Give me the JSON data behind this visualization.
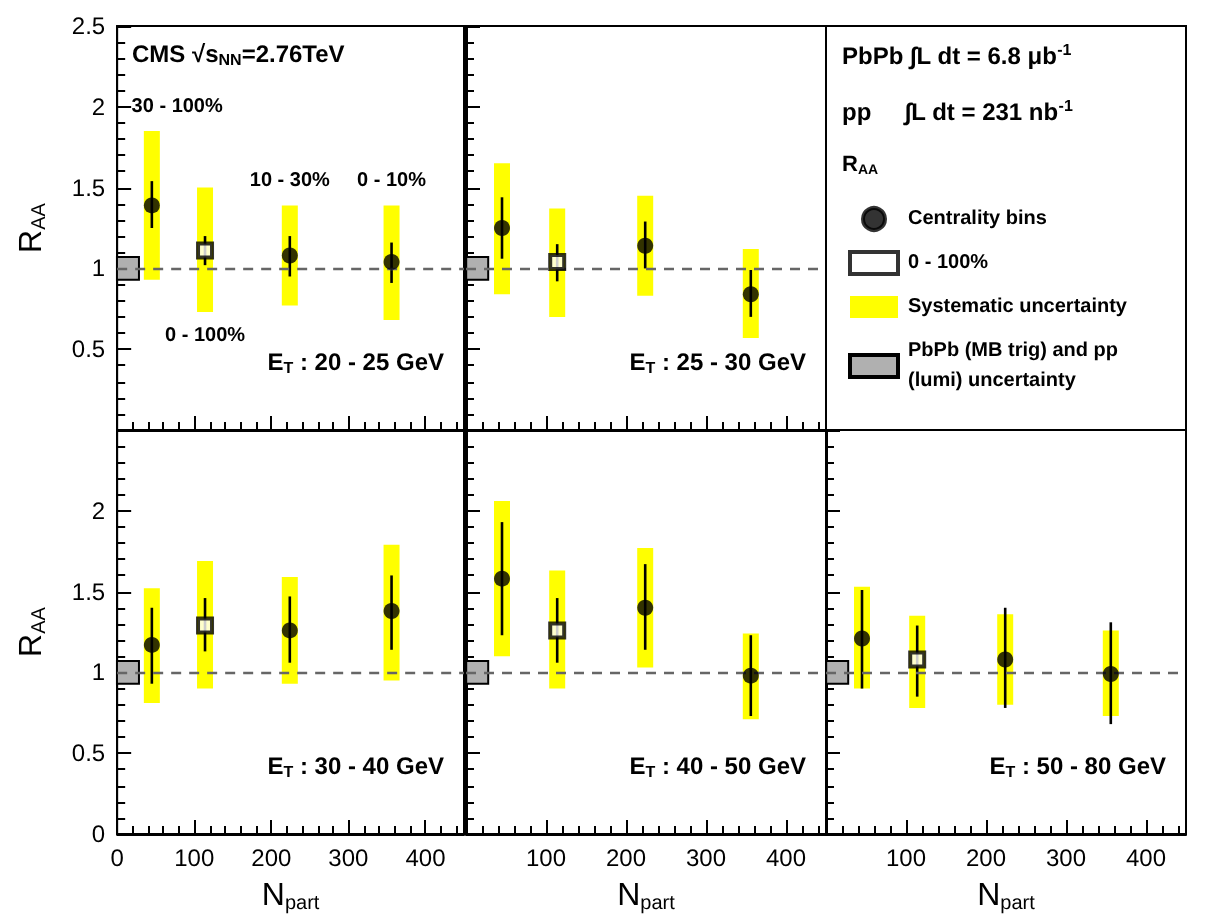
{
  "chart_data": [
    {
      "type": "scatter",
      "ylabel": "R$_{AA}$",
      "xlim": [
        0,
        450
      ],
      "ylim": [
        0,
        2.5
      ],
      "xticks": [
        0,
        100,
        200,
        300,
        400
      ],
      "yticks": [
        {
          "value": 0,
          "label": null
        },
        0.5,
        1,
        1.5,
        2,
        2.5
      ],
      "tick_labels": "y",
      "annotations": [
        "CMS √s$_{NN}$=2.76TeV",
        "E$_{T}$ : 20 - 25 GeV",
        "30 - 100%",
        "0 - 100%",
        "10 - 30%",
        "0 - 10%"
      ],
      "ref_lines": [
        {
          "axis": "y",
          "value": 1,
          "line_style": "dashed",
          "color": "#666666"
        }
      ],
      "series": [
        {
          "type": "bar",
          "color": "#ffff00",
          "x": [
            45,
            114,
            224,
            356
          ],
          "base": [
            0.93,
            0.73,
            0.77,
            0.68
          ],
          "values": [
            0.92,
            0.77,
            0.62,
            0.71
          ]
        },
        {
          "type": "bar",
          "color": "#b0b0b0",
          "x": [
            14
          ],
          "base": [
            0.93
          ],
          "values": [
            0.14
          ]
        },
        {
          "type": "scatter",
          "color": "#000000",
          "marker": "circle",
          "x": [
            45,
            224,
            356
          ],
          "values": [
            1.39,
            1.08,
            1.04
          ],
          "errors": [
            [
              1.25,
              1.54
            ],
            [
              0.95,
              1.2
            ],
            [
              0.91,
              1.16
            ]
          ]
        },
        {
          "type": "scatter",
          "color": "#000000",
          "marker": "square",
          "x": [
            114
          ],
          "values": [
            1.11
          ],
          "errors": [
            [
              1.02,
              1.2
            ]
          ]
        }
      ]
    },
    {
      "type": "scatter",
      "xlim": [
        0,
        450
      ],
      "ylim": [
        0,
        2.5
      ],
      "xticks": [
        0,
        100,
        200,
        300,
        400
      ],
      "yticks": [
        0,
        0.5,
        1,
        1.5,
        2,
        2.5
      ],
      "tick_labels": false,
      "annotations": [
        "E$_{T}$ : 25 - 30 GeV"
      ],
      "ref_lines": [
        {
          "axis": "y",
          "value": 1,
          "line_style": "dashed",
          "color": "#666666"
        }
      ],
      "series": [
        {
          "type": "bar",
          "color": "#ffff00",
          "x": [
            45,
            114,
            224,
            356
          ],
          "base": [
            0.84,
            0.7,
            0.83,
            0.57
          ],
          "values": [
            0.81,
            0.67,
            0.62,
            0.55
          ]
        },
        {
          "type": "bar",
          "color": "#b0b0b0",
          "x": [
            14
          ],
          "base": [
            0.93
          ],
          "values": [
            0.14
          ]
        },
        {
          "type": "scatter",
          "color": "#000000",
          "marker": "circle",
          "x": [
            45,
            224,
            356
          ],
          "values": [
            1.25,
            1.14,
            0.84
          ],
          "errors": [
            [
              1.06,
              1.44
            ],
            [
              1.0,
              1.29
            ],
            [
              0.7,
              0.99
            ]
          ]
        },
        {
          "type": "scatter",
          "color": "#000000",
          "marker": "square",
          "x": [
            114
          ],
          "values": [
            1.04
          ],
          "errors": [
            [
              0.92,
              1.15
            ]
          ]
        }
      ]
    },
    {
      "type": "other",
      "annotations": [
        "PbPb ∫L dt = 6.8 μb$^{-1}$",
        "pp     ∫L dt = 231 nb$^{-1}$"
      ],
      "legend_title": "R$_{AA}$",
      "legend": "right",
      "series": [
        {
          "type": "scatter",
          "name": "Centrality bins",
          "color": "#000000",
          "marker": "circle"
        },
        {
          "type": "scatter",
          "name": "0 - 100%",
          "color": "#000000",
          "marker": "square"
        },
        {
          "type": "bar",
          "name": "Systematic uncertainty",
          "color": "#ffff00"
        },
        {
          "type": "bar",
          "name": "PbPb (MB trig) and pp (lumi) uncertainty",
          "color": "#b0b0b0"
        }
      ]
    },
    {
      "type": "scatter",
      "ylabel": "R$_{AA}$",
      "xlabel": "N$_{part}$",
      "xlim": [
        0,
        450
      ],
      "ylim": [
        0,
        2.5
      ],
      "xticks": [
        0,
        100,
        200,
        300,
        400
      ],
      "yticks": [
        0,
        0.5,
        1,
        1.5,
        2,
        {
          "value": 2.5,
          "label": null
        }
      ],
      "annotations": [
        "E$_{T}$ : 30 - 40 GeV"
      ],
      "ref_lines": [
        {
          "axis": "y",
          "value": 1,
          "line_style": "dashed",
          "color": "#666666"
        }
      ],
      "series": [
        {
          "type": "bar",
          "color": "#ffff00",
          "x": [
            45,
            114,
            224,
            356
          ],
          "base": [
            0.81,
            0.9,
            0.93,
            0.95
          ],
          "values": [
            0.71,
            0.79,
            0.66,
            0.84
          ]
        },
        {
          "type": "bar",
          "color": "#b0b0b0",
          "x": [
            14
          ],
          "base": [
            0.93
          ],
          "values": [
            0.14
          ]
        },
        {
          "type": "scatter",
          "color": "#000000",
          "marker": "circle",
          "x": [
            45,
            224,
            356
          ],
          "values": [
            1.17,
            1.26,
            1.38
          ],
          "errors": [
            [
              0.93,
              1.4
            ],
            [
              1.06,
              1.47
            ],
            [
              1.14,
              1.6
            ]
          ]
        },
        {
          "type": "scatter",
          "color": "#000000",
          "marker": "square",
          "x": [
            114
          ],
          "values": [
            1.29
          ],
          "errors": [
            [
              1.13,
              1.46
            ]
          ]
        }
      ]
    },
    {
      "type": "scatter",
      "xlabel": "N$_{part}$",
      "xlim": [
        0,
        450
      ],
      "ylim": [
        0,
        2.5
      ],
      "xticks": [
        100,
        200,
        300,
        400
      ],
      "yticks": [
        0,
        0.5,
        1,
        1.5,
        2,
        2.5
      ],
      "tick_labels": "x",
      "annotations": [
        "E$_{T}$ : 40 - 50 GeV"
      ],
      "ref_lines": [
        {
          "axis": "y",
          "value": 1,
          "line_style": "dashed",
          "color": "#666666"
        }
      ],
      "series": [
        {
          "type": "bar",
          "color": "#ffff00",
          "x": [
            45,
            114,
            224,
            356
          ],
          "base": [
            1.1,
            0.9,
            1.03,
            0.71
          ],
          "values": [
            0.96,
            0.73,
            0.74,
            0.53
          ]
        },
        {
          "type": "bar",
          "color": "#b0b0b0",
          "x": [
            14
          ],
          "base": [
            0.93
          ],
          "values": [
            0.14
          ]
        },
        {
          "type": "scatter",
          "color": "#000000",
          "marker": "circle",
          "x": [
            45,
            224,
            356
          ],
          "values": [
            1.58,
            1.4,
            0.98
          ],
          "errors": [
            [
              1.23,
              1.93
            ],
            [
              1.14,
              1.67
            ],
            [
              0.73,
              1.23
            ]
          ]
        },
        {
          "type": "scatter",
          "color": "#000000",
          "marker": "square",
          "x": [
            114
          ],
          "values": [
            1.26
          ],
          "errors": [
            [
              1.06,
              1.46
            ]
          ]
        }
      ]
    },
    {
      "type": "scatter",
      "xlabel": "N$_{part}$",
      "xlim": [
        0,
        450
      ],
      "ylim": [
        0,
        2.5
      ],
      "xticks": [
        100,
        200,
        300,
        400
      ],
      "yticks": [
        0,
        0.5,
        1,
        1.5,
        2,
        2.5
      ],
      "tick_labels": "x",
      "annotations": [
        "E$_{T}$ : 50 - 80 GeV"
      ],
      "ref_lines": [
        {
          "axis": "y",
          "value": 1,
          "line_style": "dashed",
          "color": "#666666"
        }
      ],
      "series": [
        {
          "type": "bar",
          "color": "#ffff00",
          "x": [
            45,
            114,
            224,
            356
          ],
          "base": [
            0.9,
            0.78,
            0.8,
            0.73
          ],
          "values": [
            0.63,
            0.57,
            0.56,
            0.53
          ]
        },
        {
          "type": "bar",
          "color": "#b0b0b0",
          "x": [
            14
          ],
          "base": [
            0.93
          ],
          "values": [
            0.14
          ]
        },
        {
          "type": "scatter",
          "color": "#000000",
          "marker": "circle",
          "x": [
            45,
            224,
            356
          ],
          "values": [
            1.21,
            1.08,
            0.99
          ],
          "errors": [
            [
              0.9,
              1.51
            ],
            [
              0.78,
              1.4
            ],
            [
              0.68,
              1.31
            ]
          ]
        },
        {
          "type": "scatter",
          "color": "#000000",
          "marker": "square",
          "x": [
            114
          ],
          "values": [
            1.08
          ],
          "errors": [
            [
              0.85,
              1.29
            ]
          ]
        }
      ]
    }
  ]
}
